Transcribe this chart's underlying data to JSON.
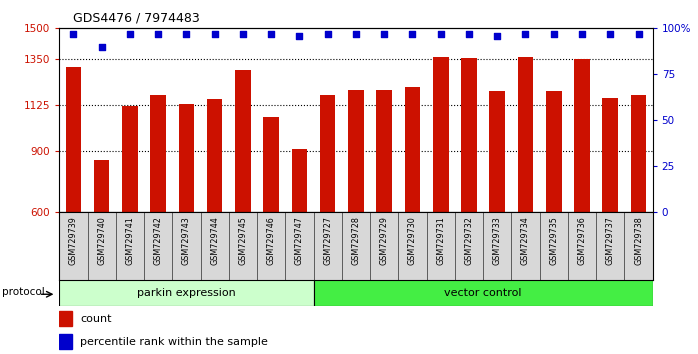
{
  "title": "GDS4476 / 7974483",
  "samples": [
    "GSM729739",
    "GSM729740",
    "GSM729741",
    "GSM729742",
    "GSM729743",
    "GSM729744",
    "GSM729745",
    "GSM729746",
    "GSM729747",
    "GSM729727",
    "GSM729728",
    "GSM729729",
    "GSM729730",
    "GSM729731",
    "GSM729732",
    "GSM729733",
    "GSM729734",
    "GSM729735",
    "GSM729736",
    "GSM729737",
    "GSM729738"
  ],
  "counts": [
    1310,
    858,
    1120,
    1175,
    1130,
    1155,
    1295,
    1065,
    910,
    1175,
    1200,
    1200,
    1215,
    1360,
    1355,
    1195,
    1360,
    1195,
    1350,
    1160,
    1175
  ],
  "percentile_ranks": [
    97,
    90,
    97,
    97,
    97,
    97,
    97,
    97,
    96,
    97,
    97,
    97,
    97,
    97,
    97,
    96,
    97,
    97,
    97,
    97,
    97
  ],
  "bar_color": "#cc1100",
  "dot_color": "#0000cc",
  "ymin": 600,
  "ymax": 1500,
  "yticks_left": [
    600,
    900,
    1125,
    1350,
    1500
  ],
  "pct_min": 0,
  "pct_max": 100,
  "yticks_right": [
    0,
    25,
    50,
    75,
    100
  ],
  "gridlines": [
    900,
    1125,
    1350
  ],
  "group1_label": "parkin expression",
  "group1_count": 9,
  "group2_label": "vector control",
  "group2_count": 12,
  "group1_color": "#ccffcc",
  "group2_color": "#44ee44",
  "legend_count_label": "count",
  "legend_pct_label": "percentile rank within the sample"
}
